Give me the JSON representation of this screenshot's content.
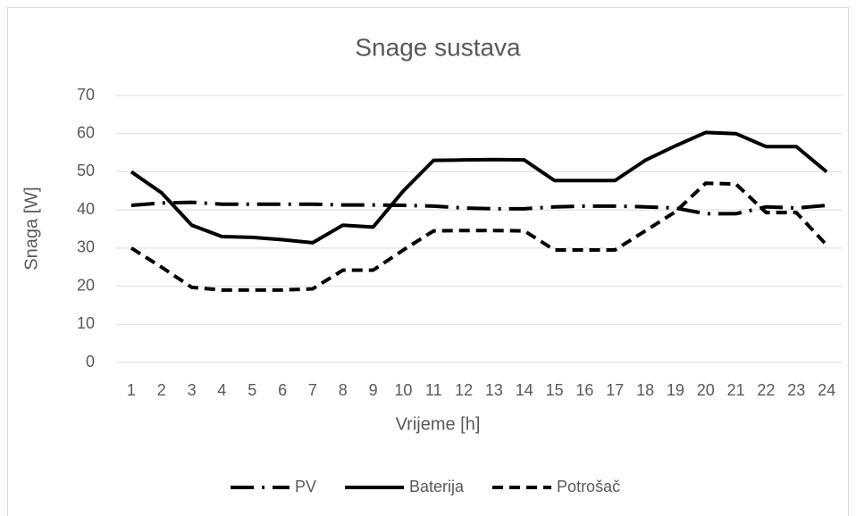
{
  "chart_data": {
    "type": "line",
    "title": "Snage sustava",
    "x_label": "Vrijeme [h]",
    "y_label": "Snaga [W]",
    "categories": [
      "1",
      "2",
      "3",
      "4",
      "5",
      "6",
      "7",
      "8",
      "9",
      "10",
      "11",
      "12",
      "13",
      "14",
      "15",
      "16",
      "17",
      "18",
      "19",
      "20",
      "21",
      "22",
      "23",
      "24"
    ],
    "series": [
      {
        "name": "PV",
        "color": "#000000",
        "dash": "long-dash-dot",
        "values": [
          41.2,
          41.8,
          42,
          41.5,
          41.5,
          41.5,
          41.5,
          41.3,
          41.3,
          41.2,
          41,
          40.5,
          40.3,
          40.3,
          40.8,
          41,
          41,
          40.8,
          40.5,
          39,
          39,
          40.8,
          40.5,
          41.2
        ]
      },
      {
        "name": "Baterija",
        "color": "#000000",
        "dash": "solid",
        "values": [
          50,
          44.5,
          36,
          33,
          32.8,
          32.2,
          31.4,
          36,
          35.5,
          45,
          53,
          53.1,
          53.2,
          53.1,
          47.7,
          47.7,
          47.7,
          53,
          56.8,
          60.3,
          60,
          56.6,
          56.6,
          50
        ]
      },
      {
        "name": "Potrošač",
        "color": "#000000",
        "dash": "dash",
        "values": [
          30,
          25,
          19.7,
          19,
          19,
          19,
          19.3,
          24.2,
          24.2,
          29.5,
          34.5,
          34.6,
          34.6,
          34.5,
          29.5,
          29.5,
          29.5,
          34.5,
          39.5,
          47,
          46.8,
          39.3,
          39.3,
          30.8
        ]
      }
    ],
    "ylim": [
      0,
      70
    ],
    "yticks": [
      0,
      10,
      20,
      30,
      40,
      50,
      60,
      70
    ],
    "grid": true,
    "legend": "bottom"
  }
}
